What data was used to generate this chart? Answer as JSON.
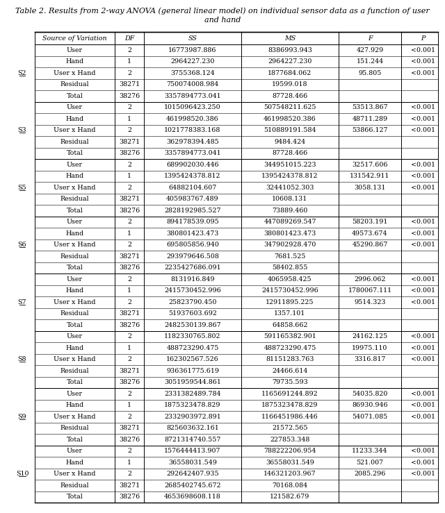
{
  "title_line1": "Table 2. Results from 2-way ANOVA (general linear model) on individual sensor data as a function of user",
  "title_line2": "and hand",
  "headers": [
    "Source of Variation",
    "DF",
    "SS",
    "MS",
    "F",
    "P"
  ],
  "sections": [
    {
      "label": "S2",
      "rows": [
        [
          "User",
          "2",
          "16773987.886",
          "8386993.943",
          "427.929",
          "<0.001"
        ],
        [
          "Hand",
          "1",
          "2964227.230",
          "2964227.230",
          "151.244",
          "<0.001"
        ],
        [
          "User x Hand",
          "2",
          "3755368.124",
          "1877684.062",
          "95.805",
          "<0.001"
        ],
        [
          "Residual",
          "38271",
          "750074008.984",
          "19599.018",
          "",
          ""
        ],
        [
          "Total",
          "38276",
          "3357894773.041",
          "87728.466",
          "",
          ""
        ]
      ]
    },
    {
      "label": "S3",
      "rows": [
        [
          "User",
          "2",
          "1015096423.250",
          "507548211.625",
          "53513.867",
          "<0.001"
        ],
        [
          "Hand",
          "1",
          "461998520.386",
          "461998520.386",
          "48711.289",
          "<0.001"
        ],
        [
          "User x Hand",
          "2",
          "1021778383.168",
          "510889191.584",
          "53866.127",
          "<0.001"
        ],
        [
          "Residual",
          "38271",
          "362978394.485",
          "9484.424",
          "",
          ""
        ],
        [
          "Total",
          "38276",
          "3357894773.041",
          "87728.466",
          "",
          ""
        ]
      ]
    },
    {
      "label": "S5",
      "rows": [
        [
          "User",
          "2",
          "689902030.446",
          "344951015.223",
          "32517.606",
          "<0.001"
        ],
        [
          "Hand",
          "1",
          "1395424378.812",
          "1395424378.812",
          "131542.911",
          "<0.001"
        ],
        [
          "User x Hand",
          "2",
          "64882104.607",
          "32441052.303",
          "3058.131",
          "<0.001"
        ],
        [
          "Residual",
          "38271",
          "405983767.489",
          "10608.131",
          "",
          ""
        ],
        [
          "Total",
          "38276",
          "2828192985.527",
          "73889.460",
          "",
          ""
        ]
      ]
    },
    {
      "label": "S6",
      "rows": [
        [
          "User",
          "2",
          "894178539.095",
          "447089269.547",
          "58203.191",
          "<0.001"
        ],
        [
          "Hand",
          "1",
          "380801423.473",
          "380801423.473",
          "49573.674",
          "<0.001"
        ],
        [
          "User x Hand",
          "2",
          "695805856.940",
          "347902928.470",
          "45290.867",
          "<0.001"
        ],
        [
          "Residual",
          "38271",
          "293979646.508",
          "7681.525",
          "",
          ""
        ],
        [
          "Total",
          "38276",
          "2235427686.091",
          "58402.855",
          "",
          ""
        ]
      ]
    },
    {
      "label": "S7",
      "rows": [
        [
          "User",
          "2",
          "8131916.849",
          "4065958.425",
          "2996.062",
          "<0.001"
        ],
        [
          "Hand",
          "1",
          "2415730452.996",
          "2415730452.996",
          "1780067.111",
          "<0.001"
        ],
        [
          "User x Hand",
          "2",
          "25823790.450",
          "12911895.225",
          "9514.323",
          "<0.001"
        ],
        [
          "Residual",
          "38271",
          "51937603.692",
          "1357.101",
          "",
          ""
        ],
        [
          "Total",
          "38276",
          "2482530139.867",
          "64858.662",
          "",
          ""
        ]
      ]
    },
    {
      "label": "S8",
      "rows": [
        [
          "User",
          "2",
          "1182330765.802",
          "591165382.901",
          "24162.125",
          "<0.001"
        ],
        [
          "Hand",
          "1",
          "488723290.475",
          "488723290.475",
          "19975.110",
          "<0.001"
        ],
        [
          "User x Hand",
          "2",
          "162302567.526",
          "81151283.763",
          "3316.817",
          "<0.001"
        ],
        [
          "Residual",
          "38271",
          "936361775.619",
          "24466.614",
          "",
          ""
        ],
        [
          "Total",
          "38276",
          "3051959544.861",
          "79735.593",
          "",
          ""
        ]
      ]
    },
    {
      "label": "S9",
      "rows": [
        [
          "User",
          "2",
          "2331382489.784",
          "1165691244.892",
          "54035.820",
          "<0.001"
        ],
        [
          "Hand",
          "1",
          "1875323478.829",
          "1875323478.829",
          "86930.946",
          "<0.001"
        ],
        [
          "User x Hand",
          "2",
          "2332903972.891",
          "1166451986.446",
          "54071.085",
          "<0.001"
        ],
        [
          "Residual",
          "38271",
          "825603632.161",
          "21572.565",
          "",
          ""
        ],
        [
          "Total",
          "38276",
          "8721314740.557",
          "227853.348",
          "",
          ""
        ]
      ]
    },
    {
      "label": "S10",
      "rows": [
        [
          "User",
          "2",
          "1576444413.907",
          "788222206.954",
          "11233.344",
          "<0.001"
        ],
        [
          "Hand",
          "1",
          "36558031.549",
          "36558031.549",
          "521.007",
          "<0.001"
        ],
        [
          "User x Hand",
          "2",
          "292642407.935",
          "146321203.967",
          "2085.296",
          "<0.001"
        ],
        [
          "Residual",
          "38271",
          "2685402745.672",
          "70168.084",
          "",
          ""
        ],
        [
          "Total",
          "38276",
          "4653698608.118",
          "121582.679",
          "",
          ""
        ]
      ]
    }
  ],
  "font_size": 6.8,
  "title_font_size": 8.0,
  "bg_color": "#ffffff"
}
